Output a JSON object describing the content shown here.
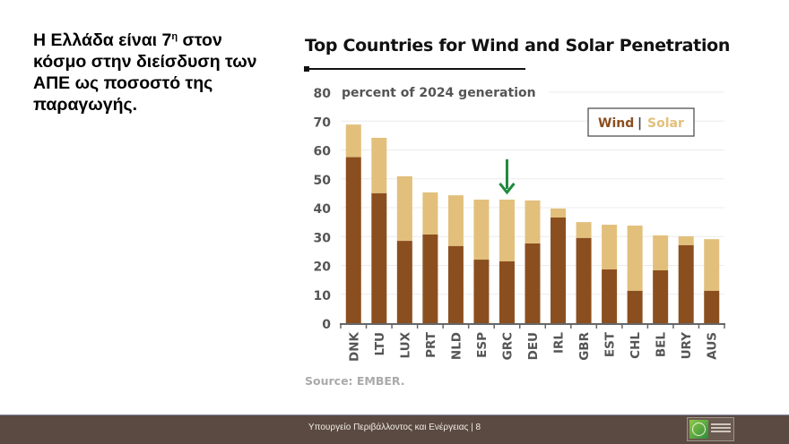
{
  "slide": {
    "headline_parts": [
      "Η Ελλάδα είναι 7",
      "η",
      " στον κόσμο στην διείσδυση των ΑΠΕ ως ποσοστό της παραγωγής."
    ],
    "footer_text": "Υπουργείο Περιβάλλοντος και Ενέργειας | 8",
    "page_number": "8",
    "footer_bg_color": "#5b4a42"
  },
  "chart_data": {
    "type": "bar",
    "stacked": true,
    "title": "Top Countries for Wind and Solar Penetration",
    "subtitle": "percent of 2024 generation",
    "xlabel": "",
    "ylabel": "percent of 2024 generation",
    "ylim": [
      0,
      80
    ],
    "yticks": [
      0,
      10,
      20,
      30,
      40,
      50,
      60,
      70,
      80
    ],
    "grid": true,
    "legend": {
      "placement": "top-right",
      "entries": [
        {
          "label": "Wind",
          "color": "#8b4f1f"
        },
        {
          "label": "Solar",
          "color": "#e2c07c"
        }
      ],
      "separator": "|"
    },
    "categories": [
      "DNK",
      "LTU",
      "LUX",
      "PRT",
      "NLD",
      "ESP",
      "GRC",
      "DEU",
      "IRL",
      "GBR",
      "EST",
      "CHL",
      "BEL",
      "URY",
      "AUS"
    ],
    "series": [
      {
        "name": "Wind",
        "color": "#8b4f1f",
        "values": [
          57.5,
          45,
          28.5,
          30.7,
          26.7,
          22,
          21.4,
          27.6,
          36.6,
          29.5,
          18.6,
          11.2,
          18.3,
          27,
          11.2
        ]
      },
      {
        "name": "Solar",
        "color": "#e2c07c",
        "values": [
          11.3,
          19.2,
          22.4,
          14.6,
          17.6,
          20.8,
          21.4,
          14.9,
          3.1,
          5.5,
          15.5,
          22.6,
          12.1,
          3.1,
          17.9
        ]
      }
    ],
    "totals": [
      68.8,
      64.2,
      50.9,
      45.3,
      44.3,
      42.8,
      42.8,
      42.5,
      39.7,
      35,
      34.1,
      33.8,
      30.4,
      30.1,
      29.1
    ],
    "annotations": [
      {
        "type": "arrow",
        "target": "GRC",
        "color": "#1e8a3e",
        "direction": "down"
      }
    ],
    "source": "Source: EMBER."
  }
}
